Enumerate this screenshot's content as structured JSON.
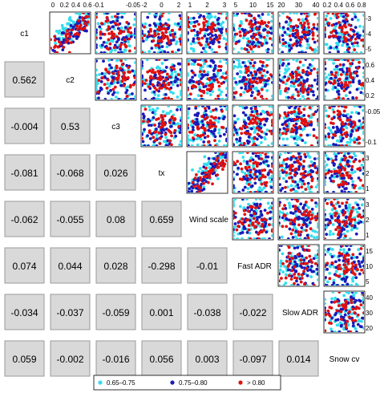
{
  "chart_data": {
    "type": "scatter-matrix",
    "variables": [
      "c1",
      "c2",
      "c3",
      "tx",
      "Wind scale",
      "Fast ADR",
      "Slow ADR",
      "Snow cv"
    ],
    "correlations": [
      [
        0.562
      ],
      [
        -0.004,
        0.53
      ],
      [
        -0.081,
        -0.068,
        0.026
      ],
      [
        -0.062,
        -0.055,
        0.08,
        0.659
      ],
      [
        0.074,
        0.044,
        0.028,
        -0.298,
        -0.01
      ],
      [
        -0.034,
        -0.037,
        -0.059,
        0.001,
        -0.038,
        -0.022
      ],
      [
        0.059,
        -0.002,
        -0.016,
        0.056,
        0.003,
        -0.097,
        0.014
      ]
    ],
    "correlation_labels": [
      [
        "0.562"
      ],
      [
        "-0.004",
        "0.53"
      ],
      [
        "-0.081",
        "-0.068",
        "0.026"
      ],
      [
        "-0.062",
        "-0.055",
        "0.08",
        "0.659"
      ],
      [
        "0.074",
        "0.044",
        "0.028",
        "-0.298",
        "-0.01"
      ],
      [
        "-0.034",
        "-0.037",
        "-0.059",
        "0.001",
        "-0.038",
        "-0.022"
      ],
      [
        "0.059",
        "-0.002",
        "-0.016",
        "0.056",
        "0.003",
        "-0.097",
        "0.014"
      ]
    ],
    "top_axis_ticks": [
      [
        "0",
        "0.2",
        "0.4",
        "0.6"
      ],
      [
        "-0.1",
        "-0.05"
      ],
      [
        "-2",
        "0",
        "2"
      ],
      [
        "1",
        "2",
        "3"
      ],
      [
        "5",
        "10",
        "15"
      ],
      [
        "20",
        "30",
        "40"
      ],
      [
        "0.2",
        "0.4",
        "0.6",
        "0.8"
      ]
    ],
    "right_axis_ticks": [
      [
        "-3",
        "-4",
        "-5"
      ],
      [
        "0.6",
        "0.4",
        "0.2"
      ],
      [
        "-0.05",
        "-0.1"
      ],
      [
        "3",
        "2",
        "1"
      ],
      [
        "3",
        "2",
        "1"
      ],
      [
        "15",
        "10",
        "5"
      ],
      [
        "40",
        "30",
        "20"
      ]
    ],
    "legend": {
      "entries": [
        {
          "label": "0.65–0.75",
          "color": "#33ddee"
        },
        {
          "label": "0.75–0.80",
          "color": "#1a1ab8"
        },
        {
          "label": "> 0.80",
          "color": "#e01010"
        }
      ]
    },
    "grid": false
  }
}
